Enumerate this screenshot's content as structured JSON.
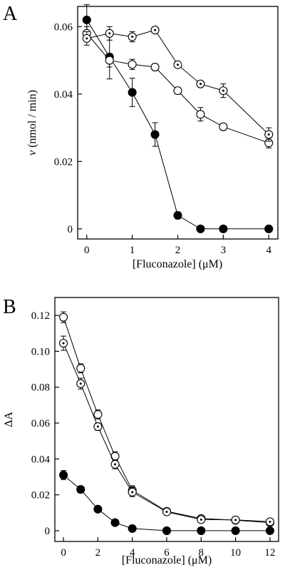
{
  "chart_data": [
    {
      "type": "line",
      "panel_label": "A",
      "xlabel": "[Fluconazole] (μM)",
      "ylabel_italic": "v",
      "ylabel_rest": " (nmol / min)",
      "xlim": [
        -0.2,
        4.2
      ],
      "ylim": [
        -0.003,
        0.066
      ],
      "x_ticks": [
        0,
        1,
        2,
        3,
        4
      ],
      "x_tick_labels": [
        "0",
        "1",
        "2",
        "3",
        "4"
      ],
      "y_ticks": [
        0,
        0.02,
        0.04,
        0.06
      ],
      "y_tick_labels": [
        "0",
        "0.02",
        "0.04",
        "0.06"
      ],
      "grid": false,
      "series": [
        {
          "marker": "filled-circle",
          "x": [
            0,
            0.5,
            1,
            1.5,
            2,
            2.5,
            3,
            4
          ],
          "y": [
            0.062,
            0.051,
            0.0405,
            0.028,
            0.004,
            0,
            0,
            0
          ],
          "err": [
            0.0045,
            0.0065,
            0.0042,
            0.0035,
            0.001,
            0.0004,
            0.0004,
            0.0004
          ]
        },
        {
          "marker": "open-circle",
          "x": [
            0,
            0.5,
            1,
            1.5,
            2,
            2.5,
            3,
            4
          ],
          "y": [
            0.058,
            0.05,
            0.0488,
            0.048,
            0.041,
            0.034,
            0.0303,
            0.0255
          ],
          "err": [
            0.002,
            0.002,
            0.0015,
            0.001,
            0.001,
            0.002,
            0.001,
            0.0015
          ]
        },
        {
          "marker": "dotted-circle",
          "x": [
            0,
            0.5,
            1,
            1.5,
            2,
            2.5,
            3,
            4
          ],
          "y": [
            0.0565,
            0.058,
            0.057,
            0.059,
            0.0487,
            0.043,
            0.041,
            0.028
          ],
          "err": [
            0.002,
            0.002,
            0.0015,
            0.0008,
            0.0005,
            0.0005,
            0.002,
            0.002
          ]
        }
      ]
    },
    {
      "type": "line",
      "panel_label": "B",
      "xlabel": "[Fluconazole] (μM)",
      "ylabel_italic": "",
      "ylabel_rest": "ΔA",
      "xlim": [
        -0.5,
        12.5
      ],
      "ylim": [
        -0.006,
        0.13
      ],
      "x_ticks": [
        0,
        2,
        4,
        6,
        8,
        10,
        12
      ],
      "x_tick_labels": [
        "0",
        "2",
        "4",
        "6",
        "8",
        "10",
        "12"
      ],
      "y_ticks": [
        0,
        0.02,
        0.04,
        0.06,
        0.08,
        0.1,
        0.12
      ],
      "y_tick_labels": [
        "0",
        "0.02",
        "0.04",
        "0.06",
        "0.08",
        "0.10",
        "0.12"
      ],
      "grid": false,
      "series": [
        {
          "marker": "filled-circle",
          "x": [
            0,
            1,
            2,
            3,
            4,
            6,
            8,
            10,
            12
          ],
          "y": [
            0.031,
            0.023,
            0.012,
            0.0045,
            0.0012,
            0,
            0,
            0,
            0
          ],
          "err": [
            0.0025,
            0.0018,
            0.0015,
            0.0012,
            0.0008,
            0.0004,
            0.0004,
            0.0004,
            0.0004
          ]
        },
        {
          "marker": "open-circle",
          "x": [
            0,
            1,
            2,
            3,
            4,
            6,
            8,
            10,
            12
          ],
          "y": [
            0.119,
            0.0905,
            0.0648,
            0.0415,
            0.0225,
            0.0108,
            0.0068,
            0.0058,
            0.0045
          ],
          "err": [
            0.003,
            0.0025,
            0.0025,
            0.0025,
            0.0025,
            0.0015,
            0.001,
            0.001,
            0.001
          ]
        },
        {
          "marker": "dotted-circle",
          "x": [
            0,
            1,
            2,
            3,
            4,
            6,
            8,
            10,
            12
          ],
          "y": [
            0.1045,
            0.082,
            0.058,
            0.037,
            0.0215,
            0.0105,
            0.0062,
            0.006,
            0.005
          ],
          "err": [
            0.004,
            0.003,
            0.002,
            0.0025,
            0.0025,
            0.001,
            0.001,
            0.001,
            0.001
          ]
        }
      ]
    }
  ]
}
